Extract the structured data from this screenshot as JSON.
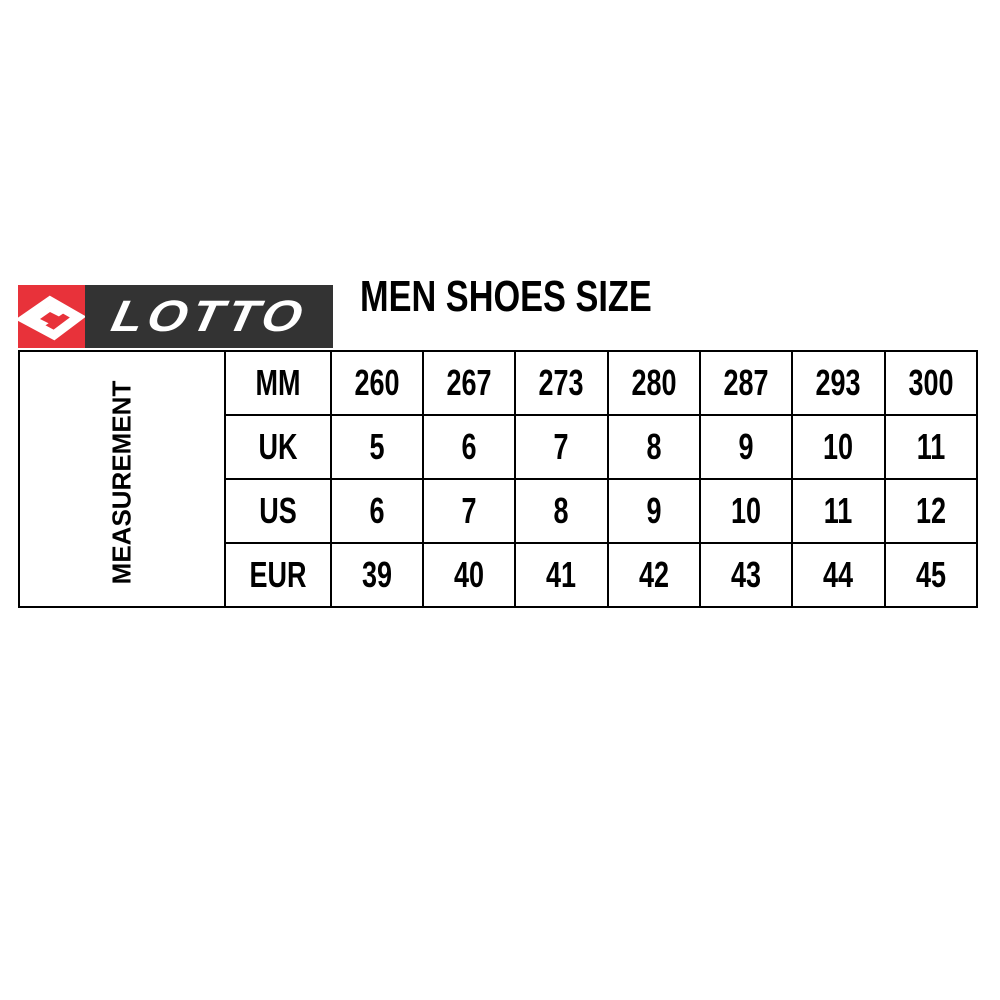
{
  "brand": {
    "name": "LOTTO",
    "colors": {
      "red": "#e8323a",
      "dark": "#333333"
    }
  },
  "title": "MEN SHOES SIZE",
  "side_label": "MEASUREMENT",
  "rows": [
    {
      "label": "MM",
      "values": [
        "260",
        "267",
        "273",
        "280",
        "287",
        "293",
        "300"
      ]
    },
    {
      "label": "UK",
      "values": [
        "5",
        "6",
        "7",
        "8",
        "9",
        "10",
        "11"
      ]
    },
    {
      "label": "US",
      "values": [
        "6",
        "7",
        "8",
        "9",
        "10",
        "11",
        "12"
      ]
    },
    {
      "label": "EUR",
      "values": [
        "39",
        "40",
        "41",
        "42",
        "43",
        "44",
        "45"
      ]
    }
  ]
}
